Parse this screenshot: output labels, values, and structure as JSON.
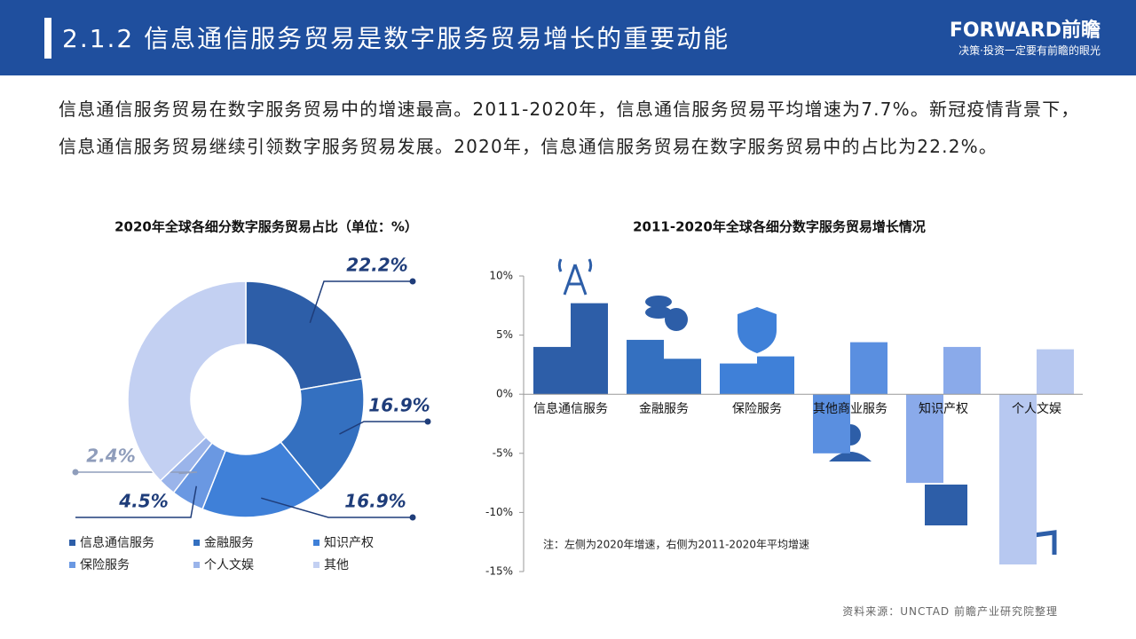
{
  "header": {
    "title": "2.1.2 信息通信服务贸易是数字服务贸易增长的重要动能",
    "logo": "FORWARD前瞻",
    "tagline": "决策·投资一定要有前瞻的眼光"
  },
  "body": {
    "paragraph": "信息通信服务贸易在数字服务贸易中的增速最高。2011-2020年，信息通信服务贸易平均增速为7.7%。新冠疫情背景下，信息通信服务贸易继续引领数字服务贸易发展。2020年，信息通信服务贸易在数字服务贸易中的占比为22.2%。"
  },
  "source": "资料来源：UNCTAD 前瞻产业研究院整理",
  "chart_data": [
    {
      "type": "donut",
      "title": "2020年全球各细分数字服务贸易占比（单位：%）",
      "categories": [
        "信息通信服务",
        "金融服务",
        "知识产权",
        "保险服务",
        "个人文娱",
        "其他"
      ],
      "values": [
        22.2,
        16.9,
        16.9,
        4.5,
        2.4,
        37.1
      ],
      "value_labels": [
        "22.2%",
        "16.9%",
        "16.9%",
        "4.5%",
        "2.4%",
        null
      ],
      "colors": [
        "#2d5ea8",
        "#3470c0",
        "#3f80d8",
        "#6a98e2",
        "#9ab4ea",
        "#c3d0f2"
      ]
    },
    {
      "type": "bar",
      "title": "2011-2020年全球各细分数字服务贸易增长情况",
      "categories": [
        "信息通信服务",
        "金融服务",
        "保险服务",
        "其他商业服务",
        "知识产权",
        "个人文娱"
      ],
      "series": [
        {
          "values": [
            4.0,
            4.6,
            2.6,
            -5.0,
            -7.5,
            -14.4
          ]
        },
        {
          "values": [
            7.7,
            3.0,
            3.2,
            4.4,
            4.0,
            3.8
          ]
        }
      ],
      "colors": [
        "#2d5ea8",
        "#3470c0",
        "#3f80d8",
        "#5a8fe0",
        "#8aaaea",
        "#b7c8f0"
      ],
      "ylim": [
        -15,
        10
      ],
      "yticks": [
        {
          "value": -15,
          "label": "-15%"
        },
        {
          "value": -10,
          "label": "-10%"
        },
        {
          "value": -5,
          "label": "-5%"
        },
        {
          "value": 0,
          "label": "0%"
        },
        {
          "value": 5,
          "label": "5%"
        },
        {
          "value": 10,
          "label": "10%"
        }
      ],
      "note": "注：左侧为2020年增速，右侧为2011-2020年平均增速"
    }
  ]
}
